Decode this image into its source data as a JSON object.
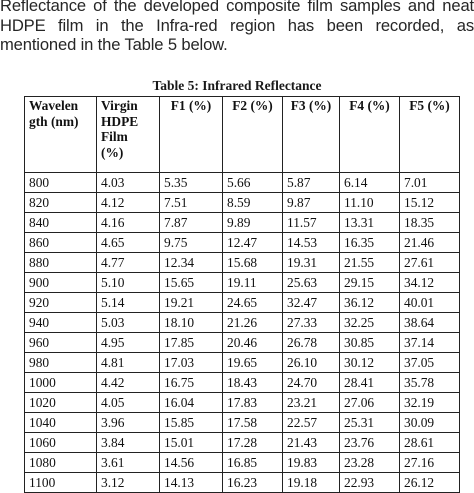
{
  "paragraph": {
    "lines": [
      "Reflectance of the developed composite film samples and neat",
      "HDPE film in the Infra-red region has been recorded, as",
      "mentioned in the Table 5 below."
    ]
  },
  "table": {
    "caption": "Table 5: Infrared Reflectance",
    "headers": {
      "wavelength": [
        "Wavelen",
        "gth (nm)"
      ],
      "virgin": [
        "Virgin",
        "HDPE",
        "Film",
        "(%)"
      ],
      "f1": "F1 (%)",
      "f2": "F2 (%)",
      "f3": "F3 (%)",
      "f4": "F4 (%)",
      "f5": "F5 (%)"
    },
    "rows": [
      [
        "800",
        "4.03",
        "5.35",
        "5.66",
        "5.87",
        "6.14",
        "7.01"
      ],
      [
        "820",
        "4.12",
        "7.51",
        "8.59",
        "9.87",
        "11.10",
        "15.12"
      ],
      [
        "840",
        "4.16",
        "7.87",
        "9.89",
        "11.57",
        "13.31",
        "18.35"
      ],
      [
        "860",
        "4.65",
        "9.75",
        "12.47",
        "14.53",
        "16.35",
        "21.46"
      ],
      [
        "880",
        "4.77",
        "12.34",
        "15.68",
        "19.31",
        "21.55",
        "27.61"
      ],
      [
        "900",
        "5.10",
        "15.65",
        "19.11",
        "25.63",
        "29.15",
        "34.12"
      ],
      [
        "920",
        "5.14",
        "19.21",
        "24.65",
        "32.47",
        "36.12",
        "40.01"
      ],
      [
        "940",
        "5.03",
        "18.10",
        "21.26",
        "27.33",
        "32.25",
        "38.64"
      ],
      [
        "960",
        "4.95",
        "17.85",
        "20.46",
        "26.78",
        "30.85",
        "37.14"
      ],
      [
        "980",
        "4.81",
        "17.03",
        "19.65",
        "26.10",
        "30.12",
        "37.05"
      ],
      [
        "1000",
        "4.42",
        "16.75",
        "18.43",
        "24.70",
        "28.41",
        "35.78"
      ],
      [
        "1020",
        "4.05",
        "16.04",
        "17.83",
        "23.21",
        "27.06",
        "32.19"
      ],
      [
        "1040",
        "3.96",
        "15.85",
        "17.58",
        "22.57",
        "25.31",
        "30.09"
      ],
      [
        "1060",
        "3.84",
        "15.01",
        "17.28",
        "21.43",
        "23.76",
        "28.61"
      ],
      [
        "1080",
        "3.61",
        "14.56",
        "16.85",
        "19.83",
        "23.28",
        "27.16"
      ],
      [
        "1100",
        "3.12",
        "14.13",
        "16.23",
        "19.18",
        "22.93",
        "26.12"
      ]
    ]
  }
}
